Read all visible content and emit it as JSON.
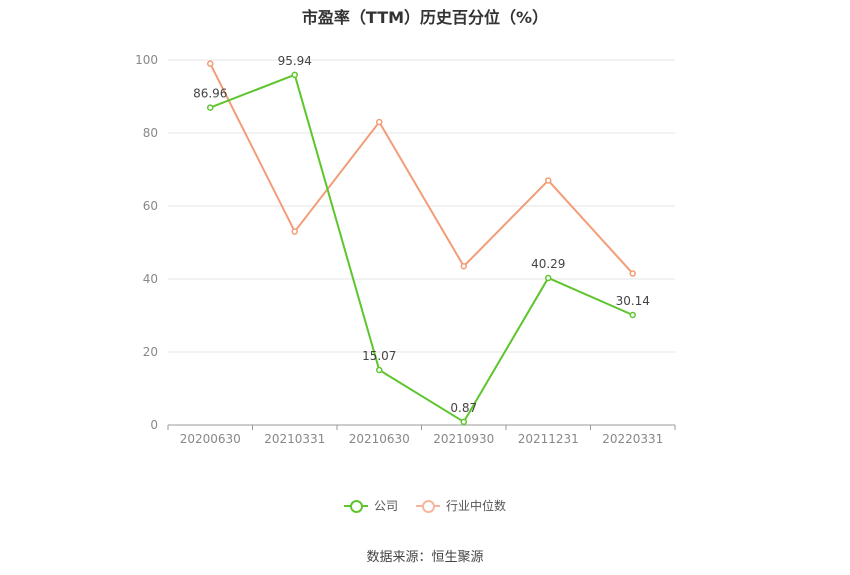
{
  "title": "市盈率（TTM）历史百分位（%）",
  "source": "数据来源：恒生聚源",
  "chart_data": {
    "type": "line",
    "categories": [
      "20200630",
      "20210331",
      "20210630",
      "20210930",
      "20211231",
      "20220331"
    ],
    "ylim": [
      0,
      100
    ],
    "yticks": [
      0,
      20,
      40,
      60,
      80,
      100
    ],
    "grid": true,
    "legend_position": "bottom-center",
    "series": [
      {
        "name": "公司",
        "color": "#5ec52d",
        "values": [
          86.96,
          95.94,
          15.07,
          0.87,
          40.29,
          30.14
        ],
        "labels": [
          "86.96",
          "95.94",
          "15.07",
          "0.87",
          "40.29",
          "30.14"
        ]
      },
      {
        "name": "行业中位数",
        "color": "#f39c78",
        "values": [
          99,
          53,
          83,
          43.5,
          67,
          41.5
        ]
      }
    ]
  }
}
